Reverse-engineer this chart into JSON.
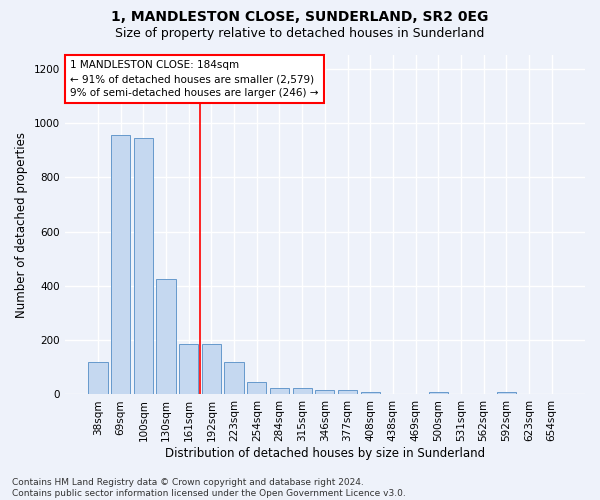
{
  "title": "1, MANDLESTON CLOSE, SUNDERLAND, SR2 0EG",
  "subtitle": "Size of property relative to detached houses in Sunderland",
  "xlabel": "Distribution of detached houses by size in Sunderland",
  "ylabel": "Number of detached properties",
  "categories": [
    "38sqm",
    "69sqm",
    "100sqm",
    "130sqm",
    "161sqm",
    "192sqm",
    "223sqm",
    "254sqm",
    "284sqm",
    "315sqm",
    "346sqm",
    "377sqm",
    "408sqm",
    "438sqm",
    "469sqm",
    "500sqm",
    "531sqm",
    "562sqm",
    "592sqm",
    "623sqm",
    "654sqm"
  ],
  "values": [
    120,
    955,
    945,
    425,
    185,
    185,
    120,
    45,
    22,
    22,
    18,
    18,
    10,
    0,
    0,
    8,
    0,
    0,
    10,
    0,
    0
  ],
  "bar_color": "#c5d8f0",
  "bar_edge_color": "#6699cc",
  "background_color": "#eef2fa",
  "grid_color": "#ffffff",
  "vline_x_index": 5,
  "vline_color": "red",
  "annotation_text": "1 MANDLESTON CLOSE: 184sqm\n← 91% of detached houses are smaller (2,579)\n9% of semi-detached houses are larger (246) →",
  "annotation_box_color": "white",
  "annotation_box_edge_color": "red",
  "ylim": [
    0,
    1250
  ],
  "yticks": [
    0,
    200,
    400,
    600,
    800,
    1000,
    1200
  ],
  "footer": "Contains HM Land Registry data © Crown copyright and database right 2024.\nContains public sector information licensed under the Open Government Licence v3.0.",
  "title_fontsize": 10,
  "subtitle_fontsize": 9,
  "xlabel_fontsize": 8.5,
  "ylabel_fontsize": 8.5,
  "tick_fontsize": 7.5,
  "annotation_fontsize": 7.5,
  "footer_fontsize": 6.5
}
